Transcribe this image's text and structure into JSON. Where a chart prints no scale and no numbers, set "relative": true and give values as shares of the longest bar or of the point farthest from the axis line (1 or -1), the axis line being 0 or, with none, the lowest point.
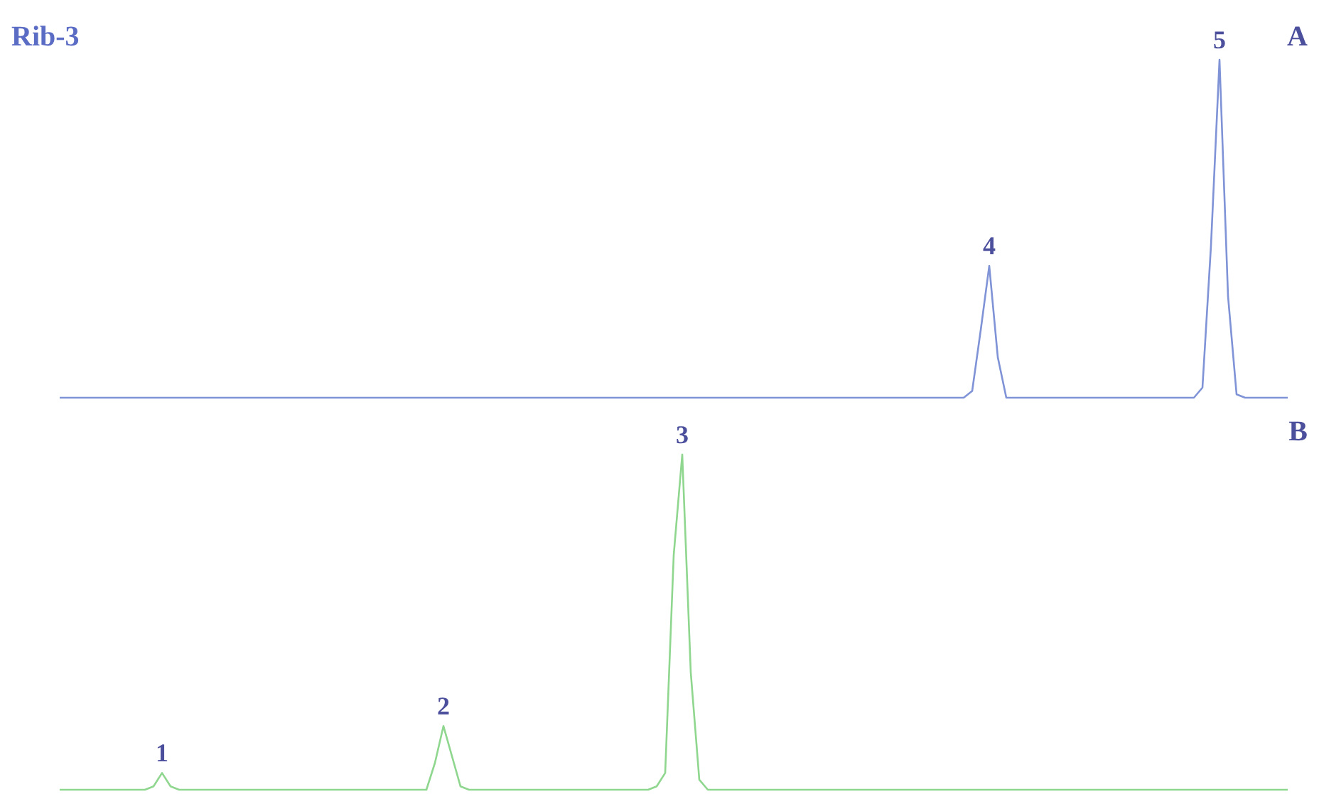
{
  "chart_data": [
    {
      "type": "line",
      "title": "Rib-3",
      "subtitle": "A",
      "relative": true,
      "marker": "none",
      "line_style": "solid",
      "annotations": [
        "4",
        "5"
      ],
      "categories": [
        null,
        null,
        null,
        null,
        null,
        null,
        null,
        null,
        null,
        null,
        null,
        null,
        null,
        null,
        null,
        null,
        null,
        null,
        null,
        null,
        null,
        null,
        null,
        null,
        null,
        null,
        null,
        null,
        null,
        null,
        null,
        null,
        null,
        null,
        null,
        null,
        null,
        null,
        null,
        null,
        null,
        null,
        null,
        null,
        null,
        null,
        null,
        null,
        null,
        null,
        null,
        null,
        null,
        null,
        null,
        null,
        null,
        null,
        null,
        null,
        null,
        null,
        null,
        null,
        null,
        null,
        null,
        null,
        null,
        null,
        null,
        null,
        null,
        null,
        null,
        null,
        null,
        null,
        null,
        null,
        null,
        null,
        null,
        null,
        null,
        null,
        null,
        null,
        null,
        null,
        null,
        null,
        null,
        null,
        null,
        null,
        null,
        null,
        null,
        null,
        null,
        null,
        null,
        null,
        null,
        null,
        null,
        null,
        null,
        null,
        null,
        null,
        null,
        null,
        null,
        null,
        null,
        null,
        null,
        null,
        null,
        null,
        null,
        null,
        null,
        null,
        null,
        null,
        null,
        null,
        null,
        null,
        null,
        null,
        null,
        null,
        null,
        null,
        null,
        null,
        null,
        null,
        null,
        null,
        null
      ],
      "series": [
        {
          "color": "#7f93d6",
          "values": [
            0,
            0,
            0,
            0,
            0,
            0,
            0,
            0,
            0,
            0,
            0,
            0,
            0,
            0,
            0,
            0,
            0,
            0,
            0,
            0,
            0,
            0,
            0,
            0,
            0,
            0,
            0,
            0,
            0,
            0,
            0,
            0,
            0,
            0,
            0,
            0,
            0,
            0,
            0,
            0,
            0,
            0,
            0,
            0,
            0,
            0,
            0,
            0,
            0,
            0,
            0,
            0,
            0,
            0,
            0,
            0,
            0,
            0,
            0,
            0,
            0,
            0,
            0,
            0,
            0,
            0,
            0,
            0,
            0,
            0,
            0,
            0,
            0,
            0,
            0,
            0,
            0,
            0,
            0,
            0,
            0,
            0,
            0,
            0,
            0,
            0,
            0,
            0,
            0,
            0,
            0,
            0,
            0,
            0,
            0,
            0,
            0,
            0,
            0,
            0,
            0,
            0,
            0,
            0,
            0,
            0,
            0,
            0.02,
            0.2,
            0.39,
            0.12,
            0,
            0,
            0,
            0,
            0,
            0,
            0,
            0,
            0,
            0,
            0,
            0,
            0,
            0,
            0,
            0,
            0,
            0,
            0,
            0,
            0,
            0,
            0,
            0.03,
            0.45,
            1,
            0.3,
            0.01,
            0,
            0,
            0,
            0,
            0,
            0
          ]
        }
      ]
    },
    {
      "type": "line",
      "subtitle": "B",
      "relative": true,
      "marker": "none",
      "line_style": "solid",
      "annotations": [
        "1",
        "2",
        "3"
      ],
      "categories": [
        null,
        null,
        null,
        null,
        null,
        null,
        null,
        null,
        null,
        null,
        null,
        null,
        null,
        null,
        null,
        null,
        null,
        null,
        null,
        null,
        null,
        null,
        null,
        null,
        null,
        null,
        null,
        null,
        null,
        null,
        null,
        null,
        null,
        null,
        null,
        null,
        null,
        null,
        null,
        null,
        null,
        null,
        null,
        null,
        null,
        null,
        null,
        null,
        null,
        null,
        null,
        null,
        null,
        null,
        null,
        null,
        null,
        null,
        null,
        null,
        null,
        null,
        null,
        null,
        null,
        null,
        null,
        null,
        null,
        null,
        null,
        null,
        null,
        null,
        null,
        null,
        null,
        null,
        null,
        null,
        null,
        null,
        null,
        null,
        null,
        null,
        null,
        null,
        null,
        null,
        null,
        null,
        null,
        null,
        null,
        null,
        null,
        null,
        null,
        null,
        null,
        null,
        null,
        null,
        null,
        null,
        null,
        null,
        null,
        null,
        null,
        null,
        null,
        null,
        null,
        null,
        null,
        null,
        null,
        null,
        null,
        null,
        null,
        null,
        null,
        null,
        null,
        null,
        null,
        null,
        null,
        null,
        null,
        null,
        null,
        null,
        null,
        null,
        null,
        null,
        null,
        null,
        null,
        null,
        null
      ],
      "series": [
        {
          "color": "#8fd68f",
          "values": [
            0,
            0,
            0,
            0,
            0,
            0,
            0,
            0,
            0,
            0,
            0,
            0.01,
            0.05,
            0.01,
            0,
            0,
            0,
            0,
            0,
            0,
            0,
            0,
            0,
            0,
            0,
            0,
            0,
            0,
            0,
            0,
            0,
            0,
            0,
            0,
            0,
            0,
            0,
            0,
            0,
            0,
            0,
            0,
            0,
            0,
            0.08,
            0.19,
            0.1,
            0.01,
            0,
            0,
            0,
            0,
            0,
            0,
            0,
            0,
            0,
            0,
            0,
            0,
            0,
            0,
            0,
            0,
            0,
            0,
            0,
            0,
            0,
            0,
            0.01,
            0.05,
            0.7,
            1,
            0.35,
            0.03,
            0,
            0,
            0,
            0,
            0,
            0,
            0,
            0,
            0,
            0,
            0,
            0,
            0,
            0,
            0,
            0,
            0,
            0,
            0,
            0,
            0,
            0,
            0,
            0,
            0,
            0,
            0,
            0,
            0,
            0,
            0,
            0,
            0,
            0,
            0,
            0,
            0,
            0,
            0,
            0,
            0,
            0,
            0,
            0,
            0,
            0,
            0,
            0,
            0,
            0,
            0,
            0,
            0,
            0,
            0,
            0,
            0,
            0,
            0,
            0,
            0,
            0,
            0,
            0,
            0,
            0,
            0,
            0,
            0
          ]
        }
      ]
    }
  ]
}
